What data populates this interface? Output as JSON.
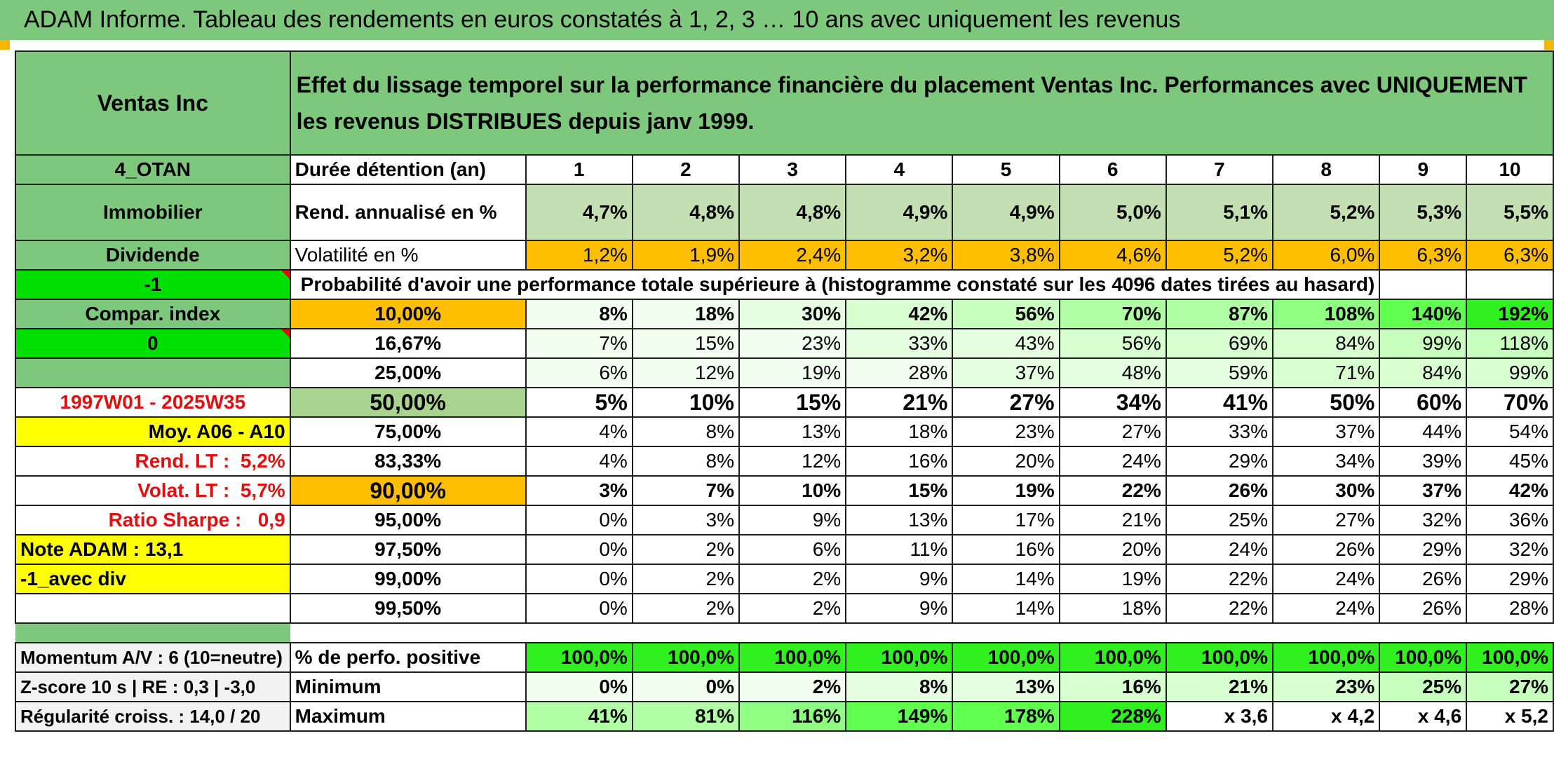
{
  "title": "ADAM Informe. Tableau des rendements en euros constatés à 1, 2, 3 … 10 ans avec uniquement les revenus",
  "side": {
    "fund": "Ventas Inc",
    "code": "4_OTAN",
    "sector": "Immobilier",
    "type": "Dividende",
    "flag1": "-1",
    "compar": "Compar. index",
    "flag2": "0",
    "period": "1997W01 - 2025W35",
    "moy": "Moy. A06 - A10",
    "rend_lt_label": "Rend. LT :",
    "rend_lt_value": "5,2%",
    "volat_lt_label": "Volat. LT :",
    "volat_lt_value": "5,7%",
    "sharpe_label": "Ratio Sharpe :",
    "sharpe_value": "0,9",
    "note": "Note ADAM : 13,1",
    "avec_div": "-1_avec div",
    "momentum": "Momentum A/V : 6 (10=neutre)",
    "zscore": "Z-score 10 s | RE : 0,3 | -3,0",
    "regularite": "Régularité croiss. : 14,0 / 20"
  },
  "header_text": "Effet du lissage temporel sur la performance financière du placement Ventas Inc. Performances avec UNIQUEMENT les revenus DISTRIBUES depuis janv 1999.",
  "duree_label": "Durée détention (an)",
  "years": [
    "1",
    "2",
    "3",
    "4",
    "5",
    "6",
    "7",
    "8",
    "9",
    "10"
  ],
  "rend_label": "Rend. annualisé en %",
  "rend": [
    "4,7%",
    "4,8%",
    "4,8%",
    "4,9%",
    "4,9%",
    "5,0%",
    "5,1%",
    "5,2%",
    "5,3%",
    "5,5%"
  ],
  "vol_label": "Volatilité en %",
  "vol": [
    "1,2%",
    "1,9%",
    "2,4%",
    "3,2%",
    "3,8%",
    "4,6%",
    "5,2%",
    "6,0%",
    "6,3%",
    "6,3%"
  ],
  "prob_label": "Probabilité d'avoir une performance totale supérieure à (histogramme constaté sur les 4096 dates tirées au hasard)",
  "prob_rows": [
    {
      "pct": "10,00%",
      "values": [
        "8%",
        "18%",
        "30%",
        "42%",
        "56%",
        "70%",
        "87%",
        "108%",
        "140%",
        "192%"
      ]
    },
    {
      "pct": "16,67%",
      "values": [
        "7%",
        "15%",
        "23%",
        "33%",
        "43%",
        "56%",
        "69%",
        "84%",
        "99%",
        "118%"
      ]
    },
    {
      "pct": "25,00%",
      "values": [
        "6%",
        "12%",
        "19%",
        "28%",
        "37%",
        "48%",
        "59%",
        "71%",
        "84%",
        "99%"
      ]
    },
    {
      "pct": "50,00%",
      "values": [
        "5%",
        "10%",
        "15%",
        "21%",
        "27%",
        "34%",
        "41%",
        "50%",
        "60%",
        "70%"
      ]
    },
    {
      "pct": "75,00%",
      "values": [
        "4%",
        "8%",
        "13%",
        "18%",
        "23%",
        "27%",
        "33%",
        "37%",
        "44%",
        "54%"
      ]
    },
    {
      "pct": "83,33%",
      "values": [
        "4%",
        "8%",
        "12%",
        "16%",
        "20%",
        "24%",
        "29%",
        "34%",
        "39%",
        "45%"
      ]
    },
    {
      "pct": "90,00%",
      "values": [
        "3%",
        "7%",
        "10%",
        "15%",
        "19%",
        "22%",
        "26%",
        "30%",
        "37%",
        "42%"
      ]
    },
    {
      "pct": "95,00%",
      "values": [
        "0%",
        "3%",
        "9%",
        "13%",
        "17%",
        "21%",
        "25%",
        "27%",
        "32%",
        "36%"
      ]
    },
    {
      "pct": "97,50%",
      "values": [
        "0%",
        "2%",
        "6%",
        "11%",
        "16%",
        "20%",
        "24%",
        "26%",
        "29%",
        "32%"
      ]
    },
    {
      "pct": "99,00%",
      "values": [
        "0%",
        "2%",
        "2%",
        "9%",
        "14%",
        "19%",
        "22%",
        "24%",
        "26%",
        "29%"
      ]
    },
    {
      "pct": "99,50%",
      "values": [
        "0%",
        "2%",
        "2%",
        "9%",
        "14%",
        "18%",
        "22%",
        "24%",
        "26%",
        "28%"
      ]
    }
  ],
  "positive_label": "% de perfo. positive",
  "positive": [
    "100,0%",
    "100,0%",
    "100,0%",
    "100,0%",
    "100,0%",
    "100,0%",
    "100,0%",
    "100,0%",
    "100,0%",
    "100,0%"
  ],
  "min_label": "Minimum",
  "min": [
    "0%",
    "0%",
    "2%",
    "8%",
    "13%",
    "16%",
    "21%",
    "23%",
    "25%",
    "27%"
  ],
  "max_label": "Maximum",
  "max": [
    "41%",
    "81%",
    "116%",
    "149%",
    "178%",
    "228%",
    "x 3,6",
    "x 4,2",
    "x 4,6",
    "x 5,2"
  ],
  "colors": {
    "header_green": "#7ec87e",
    "lime": "#00e000",
    "yellow": "#ffff00",
    "orange": "#ffbf00",
    "red_text": "#e01010"
  }
}
